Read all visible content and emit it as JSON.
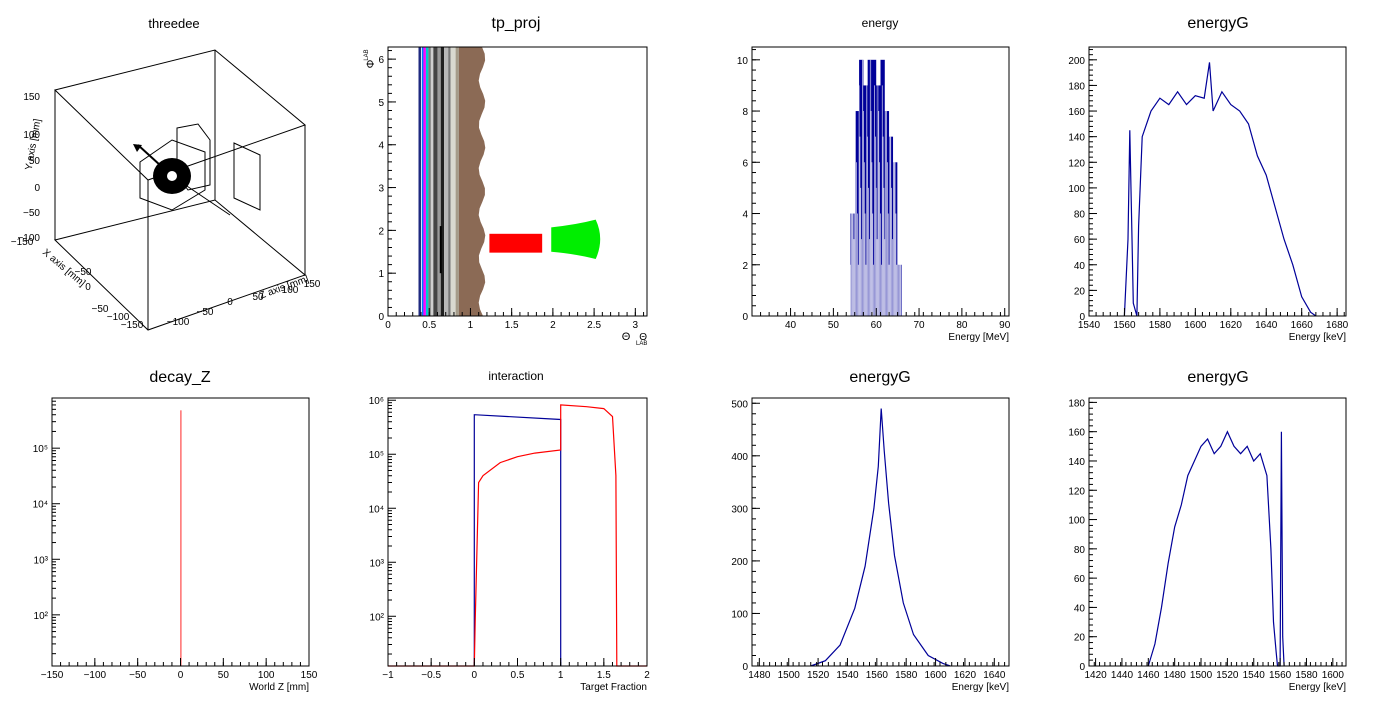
{
  "chart_data": [
    {
      "id": "threedee",
      "type": "3d-geometry",
      "title": "threedee",
      "axes": [
        {
          "label": "Y axis [mm]",
          "range": [
            -150,
            150
          ],
          "ticks": [
            -150,
            -100,
            -50,
            0,
            50,
            100,
            150
          ]
        },
        {
          "label": "X axis [mm]",
          "range": [
            -150,
            150
          ],
          "ticks": [
            -150,
            -100,
            -50,
            0,
            50,
            100,
            150
          ]
        },
        {
          "label": "Z axis [mm]",
          "range": [
            -150,
            150
          ],
          "ticks": [
            -150,
            -100,
            -50,
            0,
            50,
            100,
            150
          ]
        }
      ]
    },
    {
      "id": "tp_proj",
      "type": "2d-projection",
      "title": "tp_proj",
      "xlabel": "Θ",
      "xlabel_sub": "LAB",
      "ylabel": "Φ",
      "ylabel_sub": "LAB",
      "xlim": [
        0,
        3.1416
      ],
      "ylim": [
        0,
        6.2832
      ],
      "xticks": [
        0,
        0.5,
        1,
        1.5,
        2,
        2.5,
        3
      ],
      "yticks": [
        0,
        1,
        2,
        3,
        4,
        5,
        6
      ],
      "bands": [
        {
          "x0": 0.37,
          "x1": 0.4,
          "color": "#1f2a80"
        },
        {
          "x0": 0.41,
          "x1": 0.43,
          "color": "#0077ff"
        },
        {
          "x0": 0.43,
          "x1": 0.46,
          "color": "#ff00ff"
        },
        {
          "x0": 0.46,
          "x1": 0.49,
          "color": "#00cccc"
        },
        {
          "x0": 0.49,
          "x1": 0.52,
          "color": "#7a7a7a"
        },
        {
          "x0": 0.52,
          "x1": 0.55,
          "color": "#cfcfcf"
        },
        {
          "x0": 0.55,
          "x1": 0.6,
          "color": "#444444"
        },
        {
          "x0": 0.6,
          "x1": 0.64,
          "color": "#9a9a9a"
        },
        {
          "x0": 0.64,
          "x1": 0.68,
          "color": "#202020"
        },
        {
          "x0": 0.68,
          "x1": 0.73,
          "color": "#b8b8b8"
        },
        {
          "x0": 0.73,
          "x1": 0.76,
          "color": "#777777"
        },
        {
          "x0": 0.76,
          "x1": 0.82,
          "color": "#d9d9d0"
        },
        {
          "x0": 0.82,
          "x1": 0.86,
          "color": "#a59c8a"
        }
      ],
      "regions": [
        {
          "name": "brown",
          "x": [
            0.86,
            1.18
          ],
          "y": [
            0,
            6.2832
          ],
          "color": "#8b6a55"
        },
        {
          "name": "red",
          "x": [
            1.23,
            1.87
          ],
          "y": [
            1.48,
            1.92
          ],
          "color": "#ff0000"
        },
        {
          "name": "green",
          "x": [
            1.98,
            2.58
          ],
          "y": [
            1.33,
            2.25
          ],
          "color": "#00ee00"
        }
      ]
    },
    {
      "id": "energy",
      "type": "histogram",
      "title": "energy",
      "xlabel": "Energy [MeV]",
      "ylabel": "",
      "xlim": [
        31,
        91
      ],
      "ylim": [
        0,
        10.5
      ],
      "xticks": [
        40,
        50,
        60,
        70,
        80,
        90
      ],
      "yticks": [
        0,
        2,
        4,
        6,
        8,
        10
      ],
      "color": "#000099",
      "bins": [
        [
          54,
          55,
          4
        ],
        [
          55,
          56,
          8
        ],
        [
          56,
          57,
          10
        ],
        [
          57,
          58,
          9
        ],
        [
          58,
          59,
          10
        ],
        [
          59,
          60,
          10
        ],
        [
          60,
          61,
          9
        ],
        [
          61,
          62,
          10
        ],
        [
          62,
          63,
          8
        ],
        [
          63,
          64,
          7
        ],
        [
          64,
          65,
          6
        ],
        [
          65,
          66,
          2
        ]
      ]
    },
    {
      "id": "energyG_1",
      "type": "histogram",
      "title": "energyG",
      "xlabel": "Energy [keV]",
      "ylabel": "",
      "xlim": [
        1540,
        1685
      ],
      "ylim": [
        0,
        210
      ],
      "xticks": [
        1540,
        1560,
        1580,
        1600,
        1620,
        1640,
        1660,
        1680
      ],
      "yticks": [
        0,
        20,
        40,
        60,
        80,
        100,
        120,
        140,
        160,
        180,
        200
      ],
      "color": "#000099",
      "points": [
        [
          1560,
          0
        ],
        [
          1562,
          60
        ],
        [
          1563,
          145
        ],
        [
          1564,
          80
        ],
        [
          1565,
          10
        ],
        [
          1567,
          0
        ],
        [
          1568,
          70
        ],
        [
          1570,
          140
        ],
        [
          1575,
          160
        ],
        [
          1580,
          170
        ],
        [
          1585,
          165
        ],
        [
          1590,
          175
        ],
        [
          1595,
          165
        ],
        [
          1600,
          172
        ],
        [
          1605,
          170
        ],
        [
          1608,
          198
        ],
        [
          1610,
          160
        ],
        [
          1615,
          175
        ],
        [
          1620,
          165
        ],
        [
          1625,
          160
        ],
        [
          1630,
          150
        ],
        [
          1635,
          125
        ],
        [
          1640,
          110
        ],
        [
          1645,
          85
        ],
        [
          1650,
          60
        ],
        [
          1655,
          40
        ],
        [
          1660,
          15
        ],
        [
          1665,
          3
        ],
        [
          1668,
          0
        ]
      ]
    },
    {
      "id": "decay_Z",
      "type": "histogram",
      "title": "decay_Z",
      "xlabel": "World Z [mm]",
      "ylabel": "",
      "xlim": [
        -150,
        150
      ],
      "ylim": [
        12,
        800000
      ],
      "yscale": "log",
      "xticks": [
        -150,
        -100,
        -50,
        0,
        50,
        100,
        150
      ],
      "yticks": [
        100,
        1000,
        10000,
        100000
      ],
      "ytick_labels": [
        "10²",
        "10³",
        "10⁴",
        "10⁵"
      ],
      "color": "#ff0000",
      "bins": [
        [
          0,
          1,
          480000
        ]
      ]
    },
    {
      "id": "interaction",
      "type": "histogram",
      "title": "interaction",
      "xlabel": "Target Fraction",
      "ylabel": "",
      "xlim": [
        -1,
        2
      ],
      "ylim": [
        12,
        1100000
      ],
      "yscale": "log",
      "xticks": [
        -1,
        -0.5,
        0,
        0.5,
        1,
        1.5,
        2
      ],
      "yticks": [
        100,
        1000,
        10000,
        100000,
        1000000
      ],
      "ytick_labels": [
        "10²",
        "10³",
        "10⁴",
        "10⁵",
        "10⁶"
      ],
      "series": [
        {
          "color": "#000099",
          "points": [
            [
              0,
              12
            ],
            [
              0,
              540000
            ],
            [
              1,
              440000
            ],
            [
              1,
              12
            ]
          ]
        },
        {
          "color": "#ff0000",
          "points": [
            [
              -1,
              12
            ],
            [
              0,
              12
            ],
            [
              0.01,
              80
            ],
            [
              0.05,
              30000
            ],
            [
              0.1,
              40000
            ],
            [
              0.3,
              70000
            ],
            [
              0.5,
              90000
            ],
            [
              0.7,
              105000
            ],
            [
              1,
              120000
            ],
            [
              1,
              820000
            ],
            [
              1.3,
              760000
            ],
            [
              1.5,
              700000
            ],
            [
              1.6,
              500000
            ],
            [
              1.64,
              40000
            ],
            [
              1.65,
              12
            ],
            [
              2,
              12
            ]
          ]
        }
      ]
    },
    {
      "id": "energyG_2",
      "type": "histogram",
      "title": "energyG",
      "xlabel": "Energy [keV]",
      "ylabel": "",
      "xlim": [
        1475,
        1650
      ],
      "ylim": [
        0,
        510
      ],
      "xticks": [
        1480,
        1500,
        1520,
        1540,
        1560,
        1580,
        1600,
        1620,
        1640
      ],
      "yticks": [
        0,
        100,
        200,
        300,
        400,
        500
      ],
      "color": "#000099",
      "points": [
        [
          1515,
          0
        ],
        [
          1525,
          10
        ],
        [
          1535,
          40
        ],
        [
          1545,
          110
        ],
        [
          1552,
          190
        ],
        [
          1558,
          300
        ],
        [
          1561,
          380
        ],
        [
          1563,
          490
        ],
        [
          1565,
          410
        ],
        [
          1568,
          310
        ],
        [
          1572,
          210
        ],
        [
          1578,
          120
        ],
        [
          1585,
          60
        ],
        [
          1595,
          20
        ],
        [
          1605,
          5
        ],
        [
          1610,
          0
        ]
      ]
    },
    {
      "id": "energyG_3",
      "type": "histogram",
      "title": "energyG",
      "xlabel": "Energy [keV]",
      "ylabel": "",
      "xlim": [
        1415,
        1610
      ],
      "ylim": [
        0,
        183
      ],
      "xticks": [
        1420,
        1440,
        1460,
        1480,
        1500,
        1520,
        1540,
        1560,
        1580,
        1600
      ],
      "yticks": [
        0,
        20,
        40,
        60,
        80,
        100,
        120,
        140,
        160,
        180
      ],
      "color": "#000099",
      "points": [
        [
          1460,
          0
        ],
        [
          1465,
          15
        ],
        [
          1470,
          40
        ],
        [
          1475,
          70
        ],
        [
          1480,
          95
        ],
        [
          1485,
          110
        ],
        [
          1490,
          130
        ],
        [
          1495,
          140
        ],
        [
          1500,
          150
        ],
        [
          1505,
          155
        ],
        [
          1510,
          145
        ],
        [
          1515,
          150
        ],
        [
          1520,
          160
        ],
        [
          1525,
          150
        ],
        [
          1530,
          145
        ],
        [
          1535,
          150
        ],
        [
          1540,
          140
        ],
        [
          1545,
          145
        ],
        [
          1550,
          130
        ],
        [
          1553,
          80
        ],
        [
          1555,
          30
        ],
        [
          1557,
          10
        ],
        [
          1558,
          0
        ],
        [
          1560,
          0
        ],
        [
          1561,
          160
        ],
        [
          1562,
          20
        ],
        [
          1563,
          0
        ]
      ]
    }
  ]
}
